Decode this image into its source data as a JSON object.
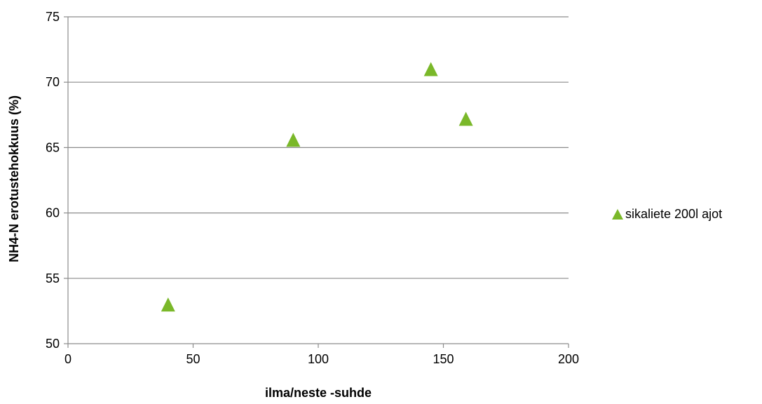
{
  "chart_data": {
    "type": "scatter",
    "xlabel": "ilma/neste -suhde",
    "ylabel": "NH4-N erotustehokkuus (%)",
    "xlim": [
      0,
      200
    ],
    "ylim": [
      50,
      75
    ],
    "xticks": [
      "0",
      "50",
      "100",
      "150",
      "200"
    ],
    "yticks": [
      "50",
      "55",
      "60",
      "65",
      "70",
      "75"
    ],
    "grid": "horizontal",
    "legend_position": "right",
    "series": [
      {
        "name": "sikaliete 200l ajot",
        "color": "#7ab829",
        "marker": "triangle",
        "points": [
          {
            "x": 40,
            "y": 53.0
          },
          {
            "x": 90,
            "y": 65.6
          },
          {
            "x": 145,
            "y": 71.0
          },
          {
            "x": 159,
            "y": 67.2
          }
        ]
      }
    ]
  }
}
